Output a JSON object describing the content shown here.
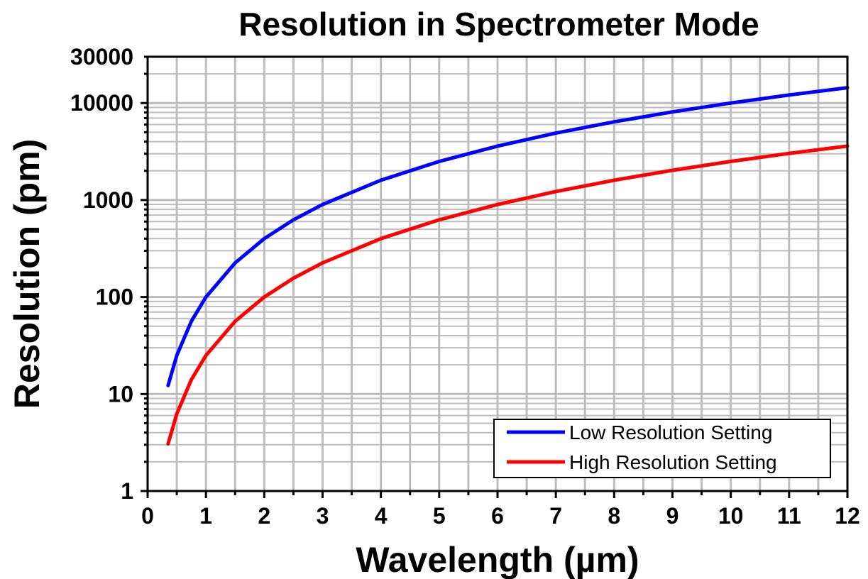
{
  "chart_data": {
    "type": "line",
    "title": "Resolution in Spectrometer Mode",
    "xlabel": "Wavelength (µm)",
    "ylabel": "Resolution (pm)",
    "xlim": [
      0,
      12
    ],
    "ylim": [
      1,
      30000
    ],
    "yscale": "log",
    "grid": true,
    "legend_position": "bottom-right",
    "x_ticks": [
      "0",
      "1",
      "2",
      "3",
      "4",
      "5",
      "6",
      "7",
      "8",
      "9",
      "10",
      "11",
      "12"
    ],
    "y_ticks": [
      "1",
      "10",
      "100",
      "1000",
      "10000",
      "30000"
    ],
    "x": [
      0.35,
      0.5,
      0.75,
      1,
      1.5,
      2,
      2.5,
      3,
      4,
      5,
      6,
      7,
      8,
      9,
      10,
      11,
      12
    ],
    "series": [
      {
        "name": "Low Resolution Setting",
        "color": "#0000ff",
        "values": [
          12.25,
          25,
          56.25,
          100,
          225,
          400,
          625,
          900,
          1600,
          2500,
          3600,
          4900,
          6400,
          8100,
          10000,
          12100,
          14400
        ]
      },
      {
        "name": "High Resolution Setting",
        "color": "#ff0000",
        "values": [
          3.06,
          6.25,
          14.06,
          25,
          56.25,
          100,
          156.25,
          225,
          400,
          625,
          900,
          1225,
          1600,
          2025,
          2500,
          3025,
          3600
        ]
      }
    ]
  }
}
